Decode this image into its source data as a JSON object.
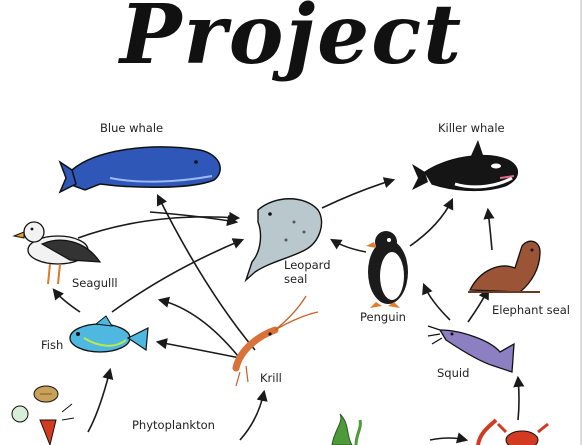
{
  "title": "Project",
  "labels": {
    "blue_whale": "Blue whale",
    "killer_whale": "Killer whale",
    "leopard_seal_1": "Leopard",
    "leopard_seal_2": "seal",
    "seagull": "Seagulll",
    "penguin": "Penguin",
    "elephant_seal": "Elephant seal",
    "fish": "Fish",
    "krill": "Krill",
    "squid": "Squid",
    "phytoplankton": "Phytoplankton"
  },
  "colors": {
    "blue_whale": "#2f57b8",
    "killer_whale": "#151515",
    "leopard_seal": "#b9c8cc",
    "seagull": "#f2f2f2",
    "penguin": "#1b1b1b",
    "elephant_seal": "#9c5436",
    "fish": "#4fb8e0",
    "krill": "#d9713a",
    "squid": "#8c7fc2",
    "plankton": "#c9a25a",
    "algae": "#4c9a3a",
    "crab": "#d23b22",
    "arrow": "#1a1a1a"
  }
}
